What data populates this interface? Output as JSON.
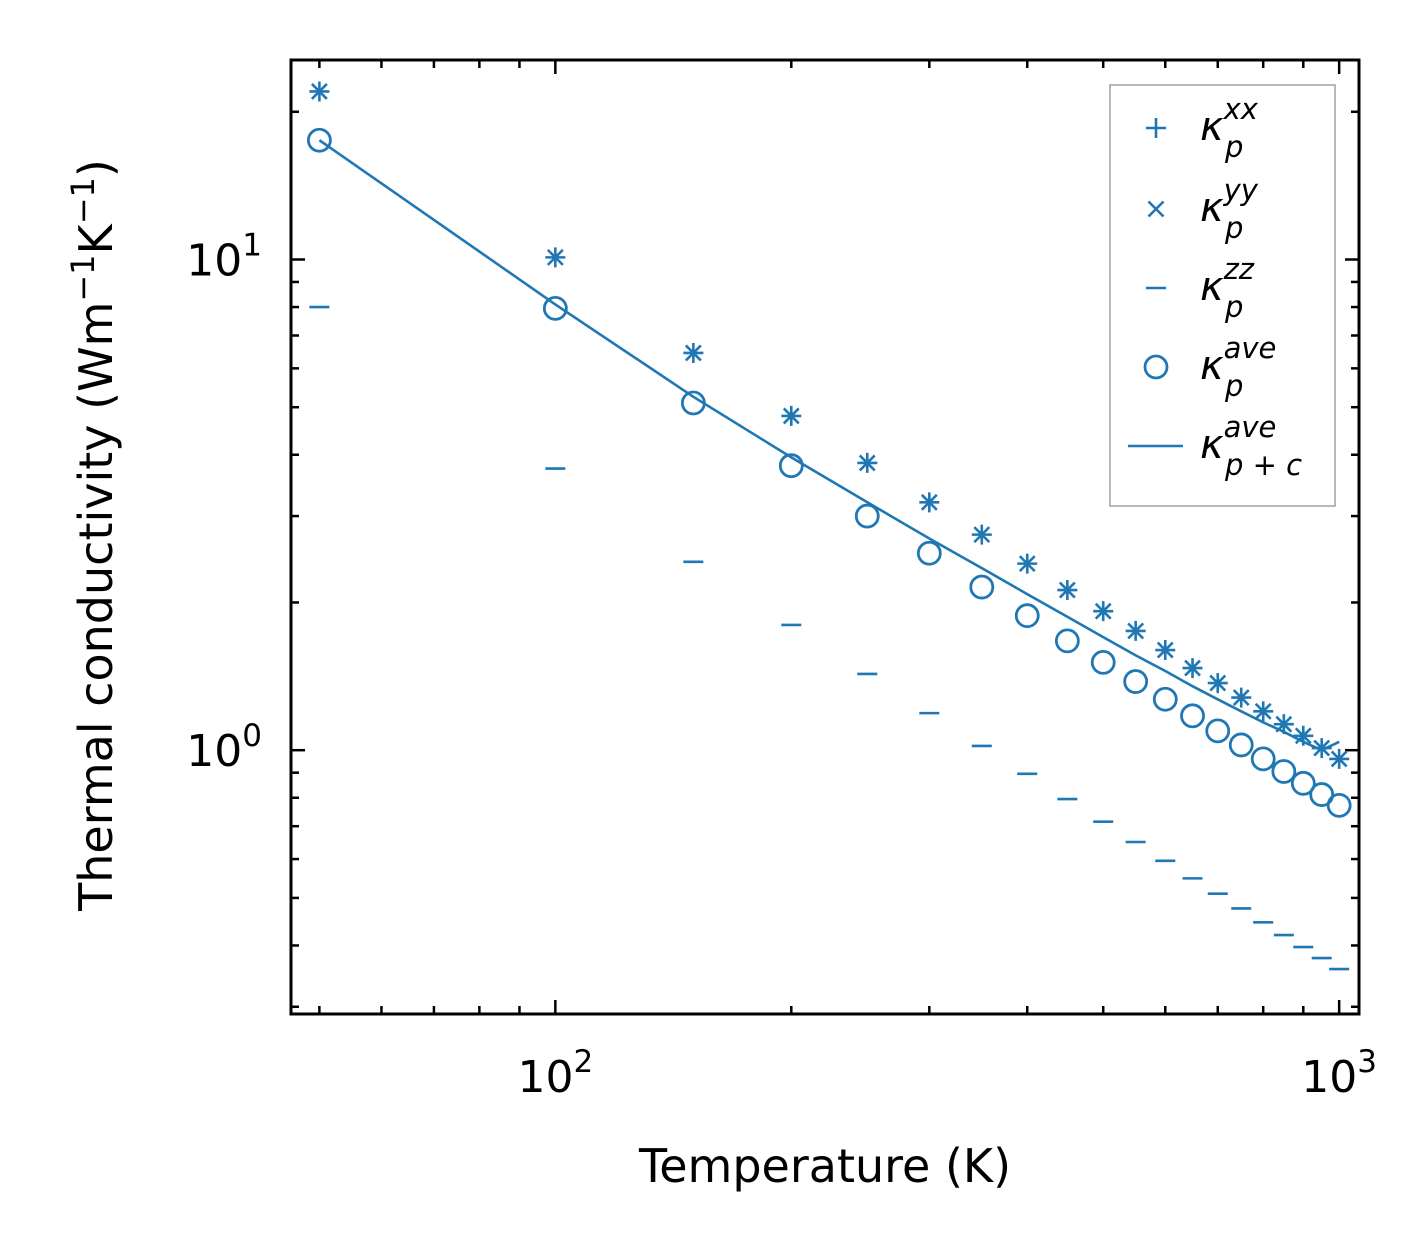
{
  "chart_data": {
    "type": "scatter",
    "xscale": "log",
    "yscale": "log",
    "xlabel": "Temperature (K)",
    "ylabel": {
      "main": "Thermal conductivity (Wm",
      "sup1": "−1",
      "mid": "K",
      "sup2": "−1",
      "end": ")"
    },
    "xlim": [
      46,
      1060
    ],
    "ylim": [
      0.29,
      25.5
    ],
    "x_ticks": [
      {
        "value": 100,
        "base": "10",
        "exp": "2"
      },
      {
        "value": 1000,
        "base": "10",
        "exp": "3"
      }
    ],
    "y_ticks": [
      {
        "value": 1,
        "base": "10",
        "exp": "0"
      },
      {
        "value": 10,
        "base": "10",
        "exp": "1"
      }
    ],
    "x": [
      50,
      100,
      150,
      200,
      250,
      300,
      350,
      400,
      450,
      500,
      550,
      600,
      650,
      700,
      750,
      800,
      850,
      900,
      950,
      1000
    ],
    "series": [
      {
        "name": "kappa_p_xx",
        "marker": "plus",
        "values": [
          22.0,
          10.1,
          6.45,
          4.8,
          3.85,
          3.2,
          2.75,
          2.4,
          2.12,
          1.92,
          1.75,
          1.6,
          1.47,
          1.37,
          1.28,
          1.2,
          1.13,
          1.07,
          1.01,
          0.96
        ]
      },
      {
        "name": "kappa_p_yy",
        "marker": "x",
        "values": [
          22.0,
          10.1,
          6.45,
          4.8,
          3.85,
          3.2,
          2.75,
          2.4,
          2.12,
          1.92,
          1.75,
          1.6,
          1.47,
          1.37,
          1.28,
          1.2,
          1.13,
          1.07,
          1.01,
          0.96
        ]
      },
      {
        "name": "kappa_p_zz",
        "marker": "hline",
        "values": [
          8.0,
          3.75,
          2.42,
          1.8,
          1.43,
          1.19,
          1.02,
          0.895,
          0.795,
          0.715,
          0.65,
          0.595,
          0.548,
          0.51,
          0.476,
          0.446,
          0.42,
          0.397,
          0.377,
          0.358
        ]
      },
      {
        "name": "kappa_p_ave",
        "marker": "circle",
        "values": [
          17.5,
          7.95,
          5.1,
          3.8,
          3.0,
          2.52,
          2.15,
          1.88,
          1.67,
          1.51,
          1.38,
          1.27,
          1.175,
          1.095,
          1.025,
          0.96,
          0.905,
          0.856,
          0.812,
          0.772
        ]
      },
      {
        "name": "kappa_p+c_ave",
        "marker": "line",
        "values": [
          17.5,
          8.1,
          5.25,
          3.95,
          3.2,
          2.7,
          2.35,
          2.08,
          1.87,
          1.7,
          1.56,
          1.45,
          1.35,
          1.27,
          1.2,
          1.14,
          1.09,
          1.04,
          1.0,
          1.04
        ]
      }
    ],
    "legend": {
      "position": "top-right",
      "entries": [
        {
          "marker": "plus",
          "base": "κ",
          "sup": "xx",
          "sub": "p"
        },
        {
          "marker": "x",
          "base": "κ",
          "sup": "yy",
          "sub": "p"
        },
        {
          "marker": "hline",
          "base": "κ",
          "sup": "zz",
          "sub": "p"
        },
        {
          "marker": "circle",
          "base": "κ",
          "sup": "ave",
          "sub": "p"
        },
        {
          "marker": "line",
          "base": "κ",
          "sup": "ave",
          "sub": "p + c"
        }
      ]
    },
    "color": "#1f77b4"
  }
}
